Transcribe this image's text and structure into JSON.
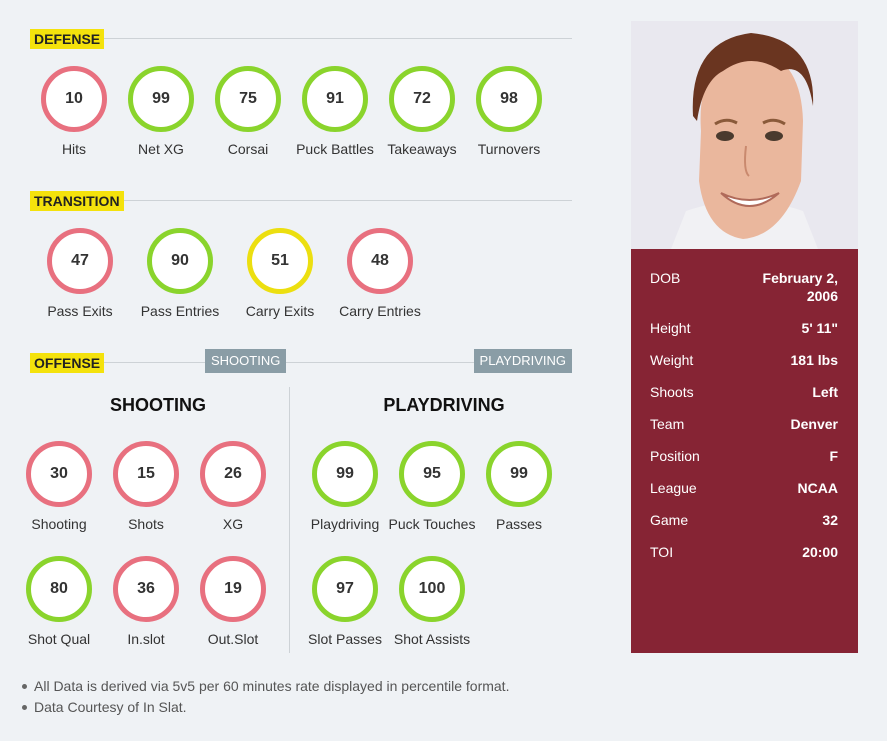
{
  "sections": {
    "defense": "DEFENSE",
    "transition": "TRANSITION",
    "offense": "OFFENSE",
    "shooting_btn": "SHOOTING",
    "playdriving_btn": "PLAYDRIVING"
  },
  "defense": [
    {
      "label": "Hits",
      "value": "10",
      "color": "red"
    },
    {
      "label": "Net XG",
      "value": "99",
      "color": "green"
    },
    {
      "label": "Corsai",
      "value": "75",
      "color": "green"
    },
    {
      "label": "Puck Battles",
      "value": "91",
      "color": "green"
    },
    {
      "label": "Takeaways",
      "value": "72",
      "color": "green"
    },
    {
      "label": "Turnovers",
      "value": "98",
      "color": "green"
    }
  ],
  "transition": [
    {
      "label": "Pass Exits",
      "value": "47",
      "color": "red"
    },
    {
      "label": "Pass Entries",
      "value": "90",
      "color": "green"
    },
    {
      "label": "Carry Exits",
      "value": "51",
      "color": "yellow"
    },
    {
      "label": "Carry Entries",
      "value": "48",
      "color": "red"
    }
  ],
  "shooting": {
    "title": "SHOOTING",
    "stats": [
      {
        "label": "Shooting",
        "value": "30",
        "color": "red"
      },
      {
        "label": "Shots",
        "value": "15",
        "color": "red"
      },
      {
        "label": "XG",
        "value": "26",
        "color": "red"
      },
      {
        "label": "Shot Qual",
        "value": "80",
        "color": "green"
      },
      {
        "label": "In.slot",
        "value": "36",
        "color": "red"
      },
      {
        "label": "Out.Slot",
        "value": "19",
        "color": "red"
      }
    ]
  },
  "playdriving": {
    "title": "PLAYDRIVING",
    "stats": [
      {
        "label": "Playdriving",
        "value": "99",
        "color": "green"
      },
      {
        "label": "Puck Touches",
        "value": "95",
        "color": "green"
      },
      {
        "label": "Passes",
        "value": "99",
        "color": "green"
      },
      {
        "label": "Slot Passes",
        "value": "97",
        "color": "green"
      },
      {
        "label": "Shot Assists",
        "value": "100",
        "color": "green"
      }
    ]
  },
  "notes": [
    "All Data is derived via 5v5 per 60 minutes rate displayed in percentile format.",
    "Data Courtesy of In Slat."
  ],
  "player": [
    {
      "key": "DOB",
      "value": "February 2, 2006"
    },
    {
      "key": "Height",
      "value": "5' 11\""
    },
    {
      "key": "Weight",
      "value": "181 lbs"
    },
    {
      "key": "Shoots",
      "value": "Left"
    },
    {
      "key": "Team",
      "value": "Denver"
    },
    {
      "key": "Position",
      "value": "F"
    },
    {
      "key": "League",
      "value": "NCAA"
    },
    {
      "key": "Game",
      "value": "32"
    },
    {
      "key": "TOI",
      "value": "20:00"
    }
  ],
  "colors": {
    "red": "#e8707f",
    "green": "#8ad42c",
    "yellow": "#ecdf10",
    "card": "#862434",
    "tag": "#f4e20c"
  }
}
